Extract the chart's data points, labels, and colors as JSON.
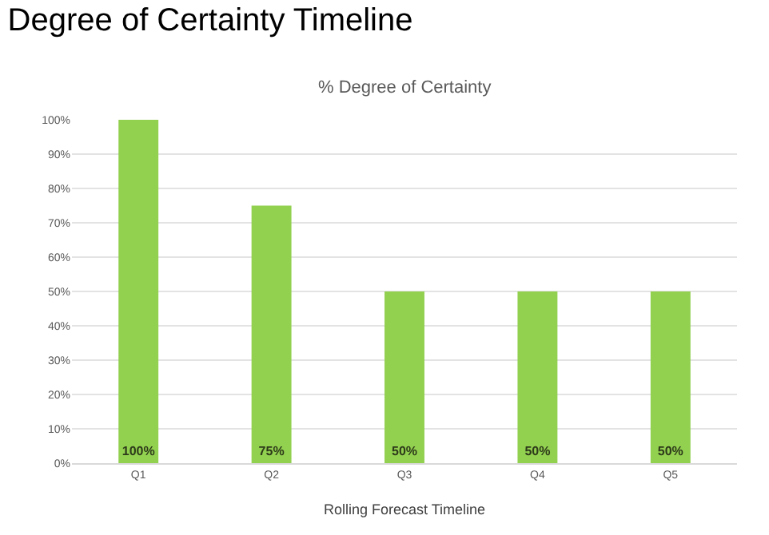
{
  "chart_data": {
    "type": "bar",
    "title": "Degree of Certainty Timeline",
    "subtitle": "% Degree of Certainty",
    "xlabel": "Rolling Forecast Timeline",
    "categories": [
      "Q1",
      "Q2",
      "Q3",
      "Q4",
      "Q5"
    ],
    "values": [
      100,
      75,
      50,
      50,
      50
    ],
    "color": "#92d050",
    "value_labels": [
      "100%",
      "75%",
      "50%",
      "50%",
      "50%"
    ],
    "ylim": [
      0,
      100
    ],
    "yticks": [
      {
        "value": 0,
        "label": "0%"
      },
      {
        "value": 10,
        "label": "10%"
      },
      {
        "value": 20,
        "label": "20%"
      },
      {
        "value": 30,
        "label": "30%"
      },
      {
        "value": 40,
        "label": "40%"
      },
      {
        "value": 50,
        "label": "50%"
      },
      {
        "value": 60,
        "label": "60%"
      },
      {
        "value": 70,
        "label": "70%"
      },
      {
        "value": 80,
        "label": "80%"
      },
      {
        "value": 90,
        "label": "90%"
      },
      {
        "value": 100,
        "label": "100%"
      }
    ],
    "grid": "y"
  }
}
